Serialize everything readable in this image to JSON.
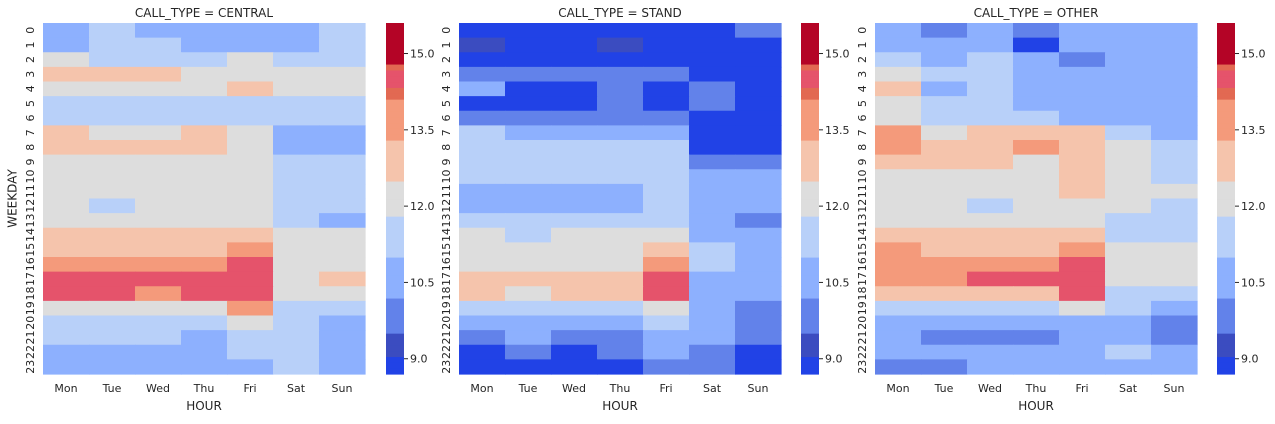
{
  "chart_data": [
    {
      "type": "heatmap",
      "title": "CALL_TYPE = CENTRAL",
      "xlabel": "HOUR",
      "ylabel": "WEEKDAY",
      "x_categories": [
        "Mon",
        "Tue",
        "Wed",
        "Thu",
        "Fri",
        "Sat",
        "Sun"
      ],
      "y_categories": [
        "0",
        "1",
        "2",
        "3",
        "4",
        "5",
        "6",
        "7",
        "8",
        "9",
        "10",
        "11",
        "12",
        "13",
        "14",
        "15",
        "16",
        "17",
        "18",
        "19",
        "20",
        "21",
        "22",
        "23"
      ],
      "colorbar": {
        "ticks": [
          9.0,
          10.5,
          12.0,
          13.5,
          15.0
        ],
        "tick_labels": [
          "9.0",
          "10.5",
          "12.0",
          "13.5",
          "15.0"
        ],
        "range": [
          8.7,
          15.6
        ]
      },
      "values": [
        [
          10.4,
          11.0,
          10.9,
          10.6,
          10.4,
          10.8,
          11.2
        ],
        [
          10.8,
          11.1,
          11.0,
          10.9,
          10.8,
          10.9,
          11.0
        ],
        [
          11.9,
          11.6,
          11.7,
          11.7,
          11.8,
          11.6,
          11.7
        ],
        [
          12.6,
          12.6,
          12.7,
          12.4,
          12.5,
          11.9,
          11.9
        ],
        [
          12.4,
          12.4,
          12.4,
          12.3,
          12.7,
          12.0,
          12.1
        ],
        [
          11.5,
          11.5,
          11.6,
          11.4,
          11.6,
          11.3,
          11.0
        ],
        [
          11.3,
          11.3,
          11.4,
          11.5,
          11.4,
          11.3,
          11.3
        ],
        [
          12.6,
          12.5,
          12.5,
          12.6,
          12.3,
          10.9,
          10.9
        ],
        [
          12.7,
          12.6,
          12.7,
          12.7,
          12.3,
          10.9,
          10.9
        ],
        [
          12.0,
          11.9,
          11.8,
          11.9,
          11.9,
          11.0,
          11.0
        ],
        [
          12.3,
          12.2,
          12.1,
          12.0,
          12.0,
          11.6,
          11.5
        ],
        [
          11.9,
          11.8,
          11.8,
          11.9,
          12.2,
          11.7,
          11.1
        ],
        [
          12.0,
          11.6,
          11.8,
          12.0,
          12.0,
          11.7,
          11.2
        ],
        [
          12.3,
          12.3,
          12.2,
          12.3,
          12.5,
          11.4,
          10.9
        ],
        [
          12.7,
          12.6,
          12.6,
          12.6,
          12.9,
          12.0,
          11.9
        ],
        [
          13.1,
          12.8,
          12.8,
          12.9,
          13.5,
          12.2,
          12.3
        ],
        [
          13.6,
          13.4,
          13.4,
          13.5,
          14.4,
          12.3,
          12.5
        ],
        [
          14.4,
          14.4,
          14.4,
          14.4,
          14.6,
          12.5,
          12.6
        ],
        [
          14.4,
          14.4,
          13.4,
          14.4,
          14.5,
          12.2,
          11.9
        ],
        [
          11.9,
          12.3,
          12.2,
          12.2,
          13.4,
          11.5,
          11.1
        ],
        [
          11.2,
          11.1,
          11.0,
          11.1,
          12.3,
          11.5,
          10.9
        ],
        [
          11.2,
          11.0,
          11.0,
          10.9,
          11.5,
          11.4,
          10.8
        ],
        [
          10.5,
          10.8,
          10.6,
          10.6,
          11.1,
          11.5,
          10.7
        ],
        [
          10.3,
          10.7,
          10.6,
          10.4,
          10.9,
          11.2,
          10.6
        ]
      ]
    },
    {
      "type": "heatmap",
      "title": "CALL_TYPE = STAND",
      "xlabel": "HOUR",
      "ylabel": "",
      "x_categories": [
        "Mon",
        "Tue",
        "Wed",
        "Thu",
        "Fri",
        "Sat",
        "Sun"
      ],
      "y_categories": [
        "0",
        "1",
        "2",
        "3",
        "4",
        "5",
        "6",
        "7",
        "8",
        "9",
        "10",
        "11",
        "12",
        "13",
        "14",
        "15",
        "16",
        "17",
        "18",
        "19",
        "20",
        "21",
        "22",
        "23"
      ],
      "colorbar": {
        "ticks": [
          9.0,
          10.5,
          12.0,
          13.5,
          15.0
        ],
        "tick_labels": [
          "9.0",
          "10.5",
          "12.0",
          "13.5",
          "15.0"
        ],
        "range": [
          8.7,
          15.6
        ]
      },
      "values": [
        [
          8.8,
          8.8,
          8.8,
          8.8,
          8.8,
          8.8,
          10.0
        ],
        [
          9.2,
          8.8,
          8.8,
          9.1,
          8.8,
          8.8,
          8.8
        ],
        [
          8.8,
          8.8,
          8.8,
          8.8,
          8.8,
          8.8,
          8.8
        ],
        [
          9.9,
          10.0,
          10.2,
          9.9,
          9.9,
          8.8,
          8.8
        ],
        [
          10.3,
          8.8,
          8.8,
          9.8,
          8.8,
          9.6,
          8.8
        ],
        [
          8.8,
          8.8,
          8.8,
          9.8,
          8.8,
          9.6,
          8.8
        ],
        [
          9.7,
          9.8,
          9.9,
          9.9,
          10.0,
          8.8,
          8.8
        ],
        [
          11.2,
          10.7,
          10.9,
          10.9,
          10.8,
          8.8,
          8.8
        ],
        [
          11.5,
          11.4,
          11.3,
          11.5,
          11.2,
          8.8,
          8.8
        ],
        [
          11.3,
          11.3,
          11.1,
          11.2,
          11.0,
          10.2,
          9.9
        ],
        [
          11.1,
          11.0,
          11.0,
          11.1,
          11.5,
          10.5,
          10.3
        ],
        [
          10.9,
          10.8,
          10.8,
          10.9,
          11.5,
          10.7,
          10.3
        ],
        [
          10.8,
          10.6,
          10.7,
          10.7,
          11.3,
          10.7,
          10.4
        ],
        [
          11.0,
          11.0,
          11.0,
          11.0,
          11.6,
          10.6,
          10.1
        ],
        [
          12.1,
          11.6,
          11.8,
          11.8,
          12.1,
          10.7,
          10.3
        ],
        [
          12.4,
          12.3,
          12.3,
          12.4,
          12.6,
          11.2,
          10.6
        ],
        [
          12.5,
          12.4,
          12.4,
          12.5,
          13.4,
          11.1,
          10.9
        ],
        [
          13.0,
          12.8,
          12.8,
          13.1,
          14.4,
          10.9,
          10.4
        ],
        [
          12.6,
          12.5,
          12.6,
          12.7,
          14.4,
          10.9,
          10.4
        ],
        [
          11.6,
          11.6,
          11.4,
          11.6,
          12.0,
          10.9,
          10.2
        ],
        [
          10.6,
          10.5,
          10.6,
          10.7,
          11.3,
          10.6,
          9.9
        ],
        [
          10.1,
          10.3,
          10.1,
          10.2,
          10.7,
          10.4,
          9.7
        ],
        [
          8.8,
          9.8,
          8.8,
          9.9,
          10.3,
          10.1,
          8.8
        ],
        [
          8.8,
          8.8,
          8.8,
          8.8,
          10.0,
          10.1,
          8.8
        ]
      ]
    },
    {
      "type": "heatmap",
      "title": "CALL_TYPE = OTHER",
      "xlabel": "HOUR",
      "ylabel": "",
      "x_categories": [
        "Mon",
        "Tue",
        "Wed",
        "Thu",
        "Fri",
        "Sat",
        "Sun"
      ],
      "y_categories": [
        "0",
        "1",
        "2",
        "3",
        "4",
        "5",
        "6",
        "7",
        "8",
        "9",
        "10",
        "11",
        "12",
        "13",
        "14",
        "15",
        "16",
        "17",
        "18",
        "19",
        "20",
        "21",
        "22",
        "23"
      ],
      "colorbar": {
        "ticks": [
          9.0,
          10.5,
          12.0,
          13.5,
          15.0
        ],
        "tick_labels": [
          "9.0",
          "10.5",
          "12.0",
          "13.5",
          "15.0"
        ],
        "range": [
          8.7,
          15.6
        ]
      },
      "values": [
        [
          10.4,
          10.2,
          10.7,
          10.2,
          10.4,
          10.3,
          10.8
        ],
        [
          10.6,
          10.4,
          10.8,
          8.8,
          10.3,
          10.5,
          10.7
        ],
        [
          11.7,
          10.5,
          11.1,
          10.6,
          10.1,
          10.4,
          10.5
        ],
        [
          12.5,
          11.0,
          11.3,
          10.7,
          10.4,
          10.4,
          10.6
        ],
        [
          12.6,
          10.8,
          11.2,
          10.6,
          10.5,
          10.5,
          10.5
        ],
        [
          12.0,
          11.3,
          11.6,
          10.9,
          10.8,
          10.6,
          10.6
        ],
        [
          12.0,
          11.2,
          11.5,
          11.1,
          10.9,
          10.6,
          10.8
        ],
        [
          13.6,
          12.5,
          13.2,
          13.1,
          13.2,
          11.0,
          10.7
        ],
        [
          13.3,
          13.1,
          13.2,
          13.6,
          13.2,
          11.8,
          11.3
        ],
        [
          12.8,
          12.9,
          12.7,
          12.4,
          12.7,
          11.9,
          11.6
        ],
        [
          12.5,
          12.4,
          12.4,
          12.4,
          13.0,
          12.0,
          11.7
        ],
        [
          12.3,
          12.1,
          12.2,
          12.2,
          13.2,
          12.0,
          11.9
        ],
        [
          11.9,
          11.9,
          11.5,
          11.8,
          12.3,
          11.9,
          11.5
        ],
        [
          12.2,
          12.0,
          12.2,
          12.0,
          12.5,
          11.4,
          11.0
        ],
        [
          12.8,
          12.7,
          12.8,
          12.9,
          13.2,
          11.6,
          11.4
        ],
        [
          13.3,
          13.1,
          13.2,
          13.2,
          13.4,
          11.9,
          12.0
        ],
        [
          13.6,
          13.5,
          13.4,
          13.5,
          14.4,
          11.9,
          11.9
        ],
        [
          13.6,
          13.6,
          14.4,
          14.4,
          14.6,
          11.9,
          12.0
        ],
        [
          12.9,
          12.6,
          12.7,
          13.1,
          14.4,
          11.4,
          11.4
        ],
        [
          11.0,
          11.7,
          11.3,
          11.1,
          12.5,
          11.1,
          10.9
        ],
        [
          10.6,
          10.4,
          10.3,
          10.4,
          10.7,
          10.6,
          9.9
        ],
        [
          10.3,
          10.0,
          10.0,
          10.0,
          10.6,
          10.4,
          10.2
        ],
        [
          10.3,
          10.6,
          10.5,
          10.4,
          10.7,
          11.0,
          10.6
        ],
        [
          10.2,
          10.2,
          10.5,
          10.3,
          10.8,
          10.5,
          10.5
        ]
      ]
    }
  ]
}
